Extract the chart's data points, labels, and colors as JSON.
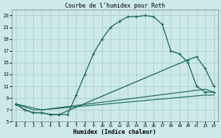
{
  "title": "Courbe de l'humidex pour Roth",
  "xlabel": "Humidex (Indice chaleur)",
  "bg_color": "#cce8e8",
  "line_color": "#1a6b5a",
  "grid_color": "#aacccc",
  "xlim": [
    -0.5,
    23.5
  ],
  "ylim": [
    5,
    24
  ],
  "xticks": [
    0,
    1,
    2,
    3,
    4,
    5,
    6,
    7,
    8,
    9,
    10,
    11,
    12,
    13,
    14,
    15,
    16,
    17,
    18,
    19,
    20,
    21,
    22,
    23
  ],
  "yticks": [
    5,
    7,
    9,
    11,
    13,
    15,
    17,
    19,
    21,
    23
  ],
  "curve1_x": [
    0,
    1,
    2,
    3,
    4,
    5,
    6,
    7,
    8,
    9,
    10,
    11,
    12,
    13,
    14,
    15,
    16,
    17,
    18,
    19,
    20,
    21,
    22,
    23
  ],
  "curve1_y": [
    8,
    7,
    6.5,
    6.5,
    6.2,
    6.2,
    6.2,
    9.5,
    13,
    16.5,
    19,
    21,
    22,
    22.8,
    22.8,
    23,
    22.8,
    21.5,
    17,
    16.5,
    15,
    11,
    10,
    10
  ],
  "curve2_x": [
    0,
    1,
    2,
    3,
    4,
    5,
    20,
    21,
    22,
    23
  ],
  "curve2_y": [
    8,
    7,
    6.5,
    6.5,
    6.2,
    6.2,
    15.5,
    16,
    14,
    11
  ],
  "curve3_x": [
    0,
    2,
    3,
    22,
    23
  ],
  "curve3_y": [
    8,
    7,
    7,
    10.5,
    10
  ],
  "curve4_x": [
    0,
    3,
    22,
    23
  ],
  "curve4_y": [
    8,
    7,
    9.5,
    9.5
  ]
}
